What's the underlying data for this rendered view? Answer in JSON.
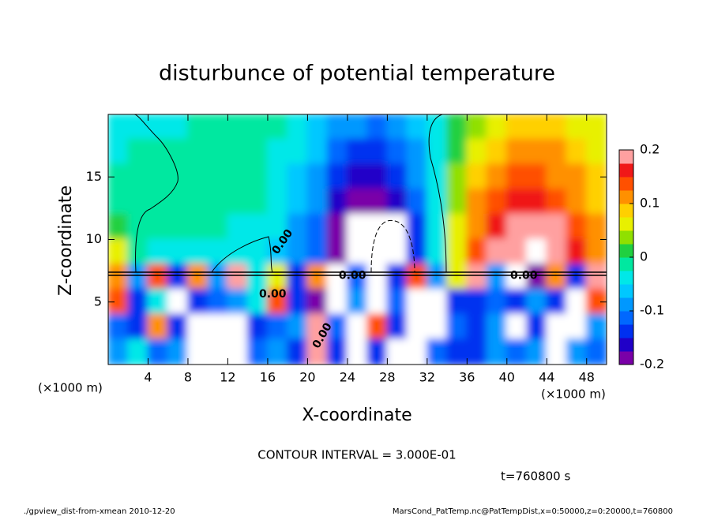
{
  "chart_data": {
    "type": "contour",
    "title": "disturbunce of potential temperature",
    "xlabel": "X-coordinate",
    "ylabel": "Z-coordinate",
    "xunit": "(×1000 m)",
    "yunit": "(×1000 m)",
    "xlim": [
      0,
      50
    ],
    "ylim": [
      0,
      20
    ],
    "xticks": [
      4,
      8,
      12,
      16,
      20,
      24,
      28,
      32,
      36,
      40,
      44,
      48
    ],
    "yticks": [
      5,
      10,
      15
    ],
    "x": [
      1,
      3,
      5,
      7,
      9,
      11,
      13,
      15,
      17,
      19,
      21,
      23,
      25,
      27,
      29,
      31,
      33,
      35,
      37,
      39,
      41,
      43,
      45,
      47,
      49
    ],
    "y": [
      19,
      17,
      15,
      13,
      11,
      9,
      7,
      5,
      3,
      1
    ],
    "z": [
      [
        -0.04,
        -0.04,
        -0.04,
        -0.03,
        -0.02,
        -0.02,
        -0.02,
        -0.02,
        -0.02,
        -0.04,
        -0.06,
        -0.08,
        -0.1,
        -0.11,
        -0.09,
        -0.06,
        -0.03,
        0.01,
        0.04,
        0.06,
        0.08,
        0.09,
        0.08,
        0.07,
        0.06
      ],
      [
        -0.03,
        -0.02,
        -0.02,
        -0.02,
        -0.02,
        -0.02,
        -0.02,
        -0.02,
        -0.03,
        -0.05,
        -0.07,
        -0.11,
        -0.13,
        -0.14,
        -0.12,
        -0.08,
        -0.04,
        0.02,
        0.06,
        0.09,
        0.11,
        0.11,
        0.1,
        0.09,
        0.07
      ],
      [
        -0.02,
        -0.02,
        -0.02,
        -0.02,
        -0.02,
        -0.02,
        -0.02,
        -0.02,
        -0.03,
        -0.06,
        -0.09,
        -0.14,
        -0.16,
        -0.17,
        -0.15,
        -0.1,
        -0.05,
        0.03,
        0.08,
        0.12,
        0.14,
        0.14,
        0.12,
        0.1,
        0.08
      ],
      [
        -0.02,
        -0.02,
        -0.02,
        -0.02,
        -0.02,
        -0.01,
        -0.02,
        -0.02,
        -0.04,
        -0.07,
        -0.1,
        -0.16,
        -0.18,
        -0.19,
        -0.17,
        -0.11,
        -0.05,
        0.04,
        0.1,
        0.14,
        0.16,
        0.16,
        0.14,
        0.12,
        0.09
      ],
      [
        0.0,
        -0.02,
        -0.02,
        -0.02,
        -0.02,
        -0.02,
        -0.03,
        -0.03,
        -0.05,
        -0.08,
        -0.12,
        -0.18,
        -0.21,
        -0.25,
        -0.22,
        -0.13,
        -0.05,
        0.05,
        0.12,
        0.17,
        0.19,
        0.19,
        0.18,
        0.14,
        0.1
      ],
      [
        0.06,
        -0.02,
        -0.03,
        -0.03,
        -0.03,
        -0.03,
        -0.03,
        -0.04,
        -0.06,
        -0.08,
        -0.12,
        -0.19,
        -0.22,
        -0.26,
        -0.24,
        -0.15,
        -0.05,
        0.05,
        0.13,
        0.18,
        0.2,
        0.21,
        0.2,
        0.16,
        0.12
      ],
      [
        0.1,
        -0.1,
        0.15,
        -0.15,
        0.1,
        -0.1,
        0.2,
        -0.05,
        0.05,
        -0.15,
        0.1,
        0.25,
        -0.12,
        0.25,
        -0.15,
        0.15,
        -0.1,
        0.05,
        0.2,
        -0.1,
        0.25,
        -0.2,
        0.1,
        -0.15,
        0.2
      ],
      [
        0.15,
        -0.15,
        -0.05,
        0.25,
        -0.15,
        -0.12,
        -0.1,
        -0.05,
        0.15,
        -0.15,
        -0.18,
        0.22,
        -0.1,
        0.25,
        -0.12,
        0.22,
        0.22,
        -0.15,
        -0.15,
        -0.12,
        -0.15,
        -0.1,
        -0.15,
        0.25,
        0.15
      ],
      [
        -0.12,
        -0.15,
        0.1,
        -0.15,
        0.25,
        0.25,
        0.25,
        -0.15,
        -0.12,
        -0.1,
        0.2,
        -0.12,
        0.22,
        0.15,
        -0.15,
        0.25,
        0.25,
        -0.12,
        -0.15,
        -0.1,
        0.25,
        -0.15,
        0.25,
        0.25,
        -0.1
      ],
      [
        -0.1,
        -0.05,
        -0.12,
        -0.1,
        0.22,
        0.25,
        0.25,
        -0.12,
        -0.1,
        -0.15,
        0.2,
        -0.15,
        0.22,
        -0.15,
        0.25,
        0.25,
        -0.12,
        -0.15,
        -0.15,
        -0.1,
        -0.12,
        -0.1,
        0.25,
        -0.1,
        -0.12
      ]
    ],
    "colorbar": {
      "lim": [
        -0.2,
        0.2
      ],
      "ticks": [
        -0.2,
        -0.1,
        0,
        0.1,
        0.2
      ],
      "colors": [
        "#7a00a8",
        "#2000c8",
        "#0030f0",
        "#0068ff",
        "#0098ff",
        "#00c8ff",
        "#00e8e8",
        "#00e8a0",
        "#20d040",
        "#90e000",
        "#e8f000",
        "#ffd000",
        "#ff9000",
        "#ff5000",
        "#f01818",
        "#ffa0a0"
      ],
      "out_of_range_color": "#ffffff"
    },
    "contour_labels": [
      "0.00",
      "0.00",
      "0.00",
      "0.00",
      "0.00"
    ],
    "contour_interval": "CONTOUR INTERVAL = 3.000E-01",
    "time_label": "t=760800 s",
    "footer_left": "./gpview_dist-from-xmean  2010-12-20",
    "footer_right": "MarsCond_PatTemp.nc@PatTempDist,x=0:50000,z=0:20000,t=760800"
  }
}
